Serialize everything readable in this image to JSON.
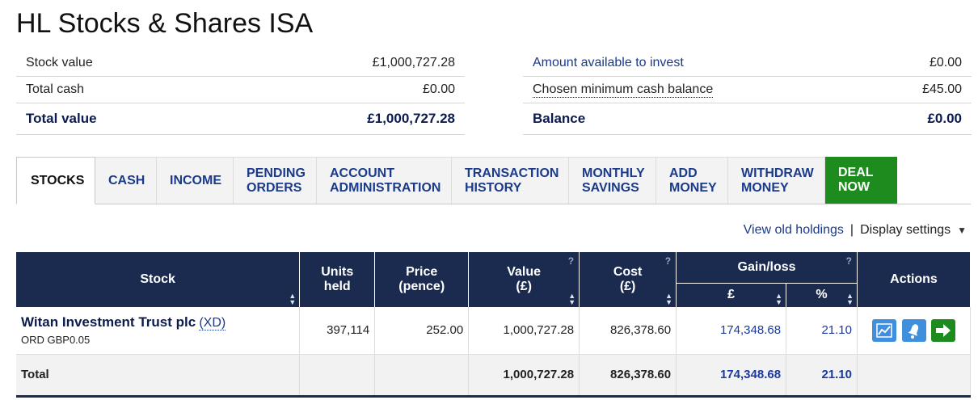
{
  "page_title": "HL Stocks & Shares ISA",
  "summary_left": {
    "rows": [
      {
        "label": "Stock value",
        "value": "£1,000,727.28"
      },
      {
        "label": "Total cash",
        "value": "£0.00"
      }
    ],
    "total": {
      "label": "Total value",
      "value": "£1,000,727.28"
    }
  },
  "summary_right": {
    "rows": [
      {
        "label": "Amount available to invest",
        "value": "£0.00"
      },
      {
        "label": "Chosen minimum cash balance",
        "value": "£45.00"
      }
    ],
    "total": {
      "label": "Balance",
      "value": "£0.00"
    }
  },
  "tabs": [
    {
      "label": "STOCKS"
    },
    {
      "label": "CASH"
    },
    {
      "label": "INCOME"
    },
    {
      "label": "PENDING\nORDERS"
    },
    {
      "label": "ACCOUNT\nADMINISTRATION"
    },
    {
      "label": "TRANSACTION\nHISTORY"
    },
    {
      "label": "MONTHLY\nSAVINGS"
    },
    {
      "label": "ADD\nMONEY"
    },
    {
      "label": "WITHDRAW\nMONEY"
    },
    {
      "label": "DEAL\nNOW"
    }
  ],
  "links": {
    "view_old": "View old holdings",
    "separator": "|",
    "display_settings": "Display settings"
  },
  "table": {
    "headers": {
      "stock": "Stock",
      "units": "Units\nheld",
      "price": "Price\n(pence)",
      "value": "Value\n(£)",
      "cost": "Cost\n(£)",
      "gainloss": "Gain/loss",
      "gain_gbp": "£",
      "gain_pct": "%",
      "actions": "Actions"
    },
    "rows": [
      {
        "name": "Witan Investment Trust plc",
        "tag": "(XD)",
        "sub": "ORD GBP0.05",
        "units": "397,114",
        "price": "252.00",
        "value": "1,000,727.28",
        "cost": "826,378.60",
        "gain_gbp": "174,348.68",
        "gain_pct": "21.10"
      }
    ],
    "total": {
      "label": "Total",
      "value": "1,000,727.28",
      "cost": "826,378.60",
      "gain_gbp": "174,348.68",
      "gain_pct": "21.10"
    }
  },
  "colors": {
    "header_bg": "#1b2b50",
    "deal_green": "#1e8b1e",
    "link_blue": "#1a3a8a",
    "action_blue": "#3f8fdd"
  }
}
